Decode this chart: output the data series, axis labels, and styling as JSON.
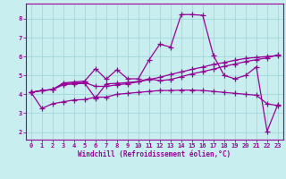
{
  "title": "",
  "xlabel": "Windchill (Refroidissement éolien,°C)",
  "ylabel": "",
  "xlim": [
    -0.5,
    23.5
  ],
  "ylim": [
    1.6,
    8.8
  ],
  "xticks": [
    0,
    1,
    2,
    3,
    4,
    5,
    6,
    7,
    8,
    9,
    10,
    11,
    12,
    13,
    14,
    15,
    16,
    17,
    18,
    19,
    20,
    21,
    22,
    23
  ],
  "yticks": [
    2,
    3,
    4,
    5,
    6,
    7,
    8
  ],
  "background_color": "#c8eef0",
  "grid_color": "#a0d8dc",
  "line_color": "#990099",
  "line_width": 0.9,
  "marker": "+",
  "marker_size": 4,
  "curves": [
    {
      "x": [
        0,
        1,
        2,
        3,
        4,
        5,
        6,
        7,
        8,
        9,
        10,
        11,
        12,
        13,
        14,
        15,
        16,
        17,
        18,
        19,
        20,
        21,
        22,
        23
      ],
      "y": [
        4.1,
        4.2,
        4.25,
        4.55,
        4.6,
        4.62,
        4.42,
        4.42,
        4.5,
        4.56,
        4.66,
        4.78,
        4.9,
        5.05,
        5.18,
        5.32,
        5.44,
        5.58,
        5.68,
        5.8,
        5.9,
        5.95,
        6.0,
        6.05
      ]
    },
    {
      "x": [
        0,
        1,
        2,
        3,
        4,
        5,
        6,
        7,
        8,
        9,
        10,
        11,
        12,
        13,
        14,
        15,
        16,
        17,
        18,
        19,
        20,
        21,
        22,
        23
      ],
      "y": [
        4.1,
        4.2,
        4.25,
        4.5,
        4.55,
        4.58,
        3.8,
        4.55,
        4.58,
        4.62,
        4.68,
        4.82,
        4.72,
        4.78,
        4.93,
        5.08,
        5.2,
        5.33,
        5.48,
        5.6,
        5.73,
        5.83,
        5.93,
        6.08
      ]
    },
    {
      "x": [
        0,
        1,
        2,
        3,
        4,
        5,
        6,
        7,
        8,
        9,
        10,
        11,
        12,
        13,
        14,
        15,
        16,
        17,
        18,
        19,
        20,
        21,
        22,
        23
      ],
      "y": [
        4.1,
        3.25,
        3.5,
        3.6,
        3.7,
        3.72,
        3.85,
        3.85,
        4.0,
        4.05,
        4.1,
        4.15,
        4.2,
        4.2,
        4.22,
        4.22,
        4.2,
        4.15,
        4.1,
        4.05,
        4.0,
        3.95,
        3.5,
        3.4
      ]
    },
    {
      "x": [
        0,
        1,
        2,
        3,
        4,
        5,
        6,
        7,
        8,
        9,
        10,
        11,
        12,
        13,
        14,
        15,
        16,
        17,
        18,
        19,
        20,
        21,
        22,
        23
      ],
      "y": [
        4.1,
        4.2,
        4.25,
        4.6,
        4.65,
        4.7,
        5.35,
        4.8,
        5.3,
        4.82,
        4.82,
        5.82,
        6.65,
        6.5,
        8.22,
        8.22,
        8.18,
        6.05,
        5.0,
        4.82,
        5.0,
        5.45,
        2.05,
        3.45
      ]
    }
  ]
}
